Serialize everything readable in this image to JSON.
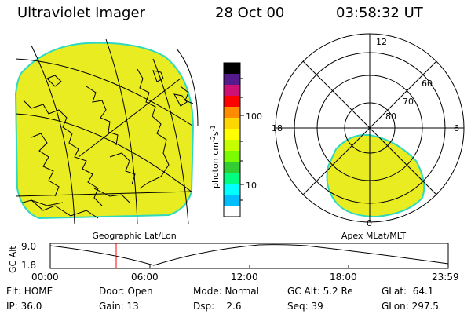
{
  "header": {
    "title": "Ultraviolet Imager",
    "date": "28 Oct 00",
    "time": "03:58:32 UT"
  },
  "geo_panel": {
    "caption": "Geographic Lat/Lon"
  },
  "apex_panel": {
    "caption": "Apex MLat/MLT",
    "mlt_labels": [
      "12",
      "18",
      "6",
      "0"
    ],
    "lat_labels": [
      "60",
      "70",
      "80"
    ]
  },
  "colorbar": {
    "unit_label": "photon cm",
    "unit_exp1": "-2",
    "unit_s": "s",
    "unit_exp2": "-1",
    "tick_labels": [
      "100",
      "10"
    ],
    "colors": [
      "#000000",
      "#551a8b",
      "#cd1076",
      "#ff0000",
      "#ff8c00",
      "#ffd700",
      "#ffff00",
      "#c8ff00",
      "#7cfc00",
      "#32cd32",
      "#00ff7f",
      "#00ffff",
      "#00bfff",
      "#ffffff"
    ]
  },
  "colors": {
    "emission_fill": "#e8ec20",
    "emission_edge": "#2ed9c0",
    "timeline_marker": "#ff0000"
  },
  "timeline": {
    "ylabel": "GC Alt",
    "y_ticks": [
      "9.0",
      "1.8"
    ],
    "x_ticks": [
      "00:00",
      "06:00",
      "12:00",
      "18:00",
      "23:59"
    ],
    "marker_time_hours": 3.975
  },
  "footer": {
    "rows": [
      [
        "Flt: HOME",
        "Door: Open",
        "Mode: Normal",
        "GC Alt: 5.2 Re",
        "GLat:  64.1"
      ],
      [
        "IP: 36.0",
        "Gain: 13",
        "Dsp:    2.6",
        "Seq: 39",
        "GLon: 297.5"
      ]
    ]
  }
}
